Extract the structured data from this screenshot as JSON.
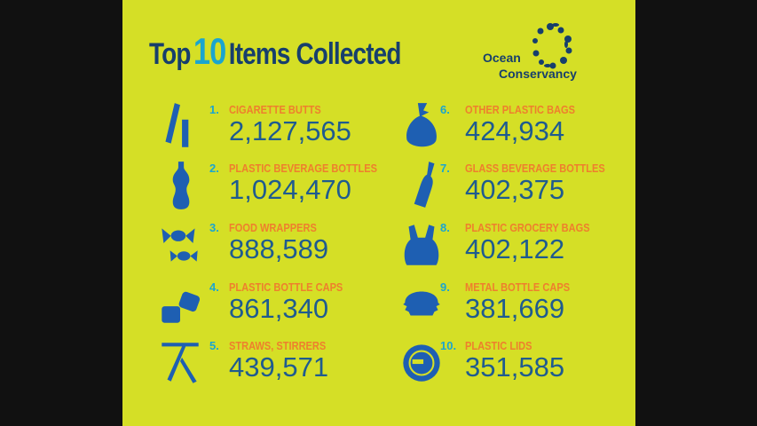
{
  "title": {
    "pre": "Top",
    "num": "10",
    "post": "Items Collected"
  },
  "logo": {
    "line1": "Ocean",
    "line2": "Conservancy"
  },
  "colors": {
    "background": "#d5df26",
    "title": "#173f6c",
    "accent": "#1ba5cf",
    "label": "#ee7f2d",
    "value": "#1f5b8f",
    "icon": "#1e5fb2"
  },
  "items": [
    {
      "rank": "1.",
      "label": "CIGARETTE BUTTS",
      "value": "2,127,565",
      "icon": "cigarette-butts-icon"
    },
    {
      "rank": "2.",
      "label": "PLASTIC BEVERAGE BOTTLES",
      "value": "1,024,470",
      "icon": "plastic-bottle-icon"
    },
    {
      "rank": "3.",
      "label": "FOOD WRAPPERS",
      "value": "888,589",
      "icon": "candy-wrapper-icon"
    },
    {
      "rank": "4.",
      "label": "PLASTIC BOTTLE CAPS",
      "value": "861,340",
      "icon": "bottle-caps-icon"
    },
    {
      "rank": "5.",
      "label": "STRAWS, STIRRERS",
      "value": "439,571",
      "icon": "straws-icon"
    },
    {
      "rank": "6.",
      "label": "OTHER PLASTIC BAGS",
      "value": "424,934",
      "icon": "tied-bag-icon"
    },
    {
      "rank": "7.",
      "label": "GLASS BEVERAGE BOTTLES",
      "value": "402,375",
      "icon": "glass-bottle-icon"
    },
    {
      "rank": "8.",
      "label": "PLASTIC GROCERY BAGS",
      "value": "402,122",
      "icon": "grocery-bag-icon"
    },
    {
      "rank": "9.",
      "label": "METAL BOTTLE CAPS",
      "value": "381,669",
      "icon": "metal-cap-icon"
    },
    {
      "rank": "10.",
      "label": "PLASTIC LIDS",
      "value": "351,585",
      "icon": "plastic-lid-icon"
    }
  ]
}
